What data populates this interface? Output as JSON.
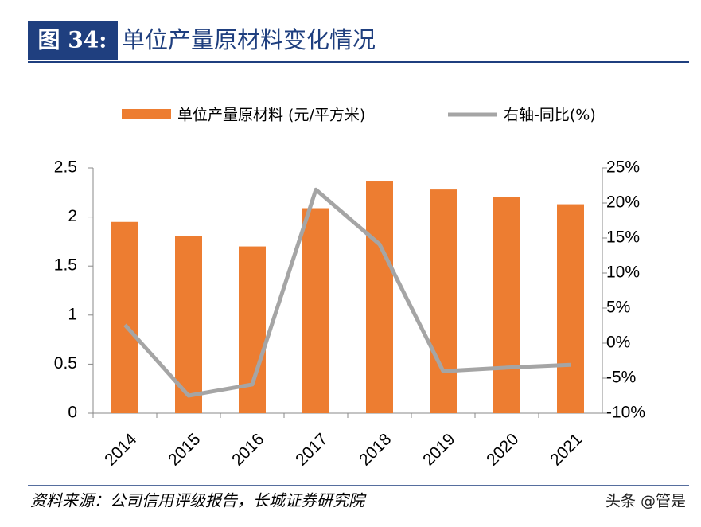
{
  "chart_data": {
    "type": "bar",
    "figure_label": "图 34:",
    "title": "单位产量原材料变化情况",
    "categories": [
      "2014",
      "2015",
      "2016",
      "2017",
      "2018",
      "2019",
      "2020",
      "2021"
    ],
    "series": [
      {
        "name": "单位产量原材料 (元/平方米)",
        "type": "bar",
        "color": "#ed7d31",
        "values": [
          1.95,
          1.81,
          1.7,
          2.09,
          2.37,
          2.28,
          2.2,
          2.13
        ]
      },
      {
        "name": "右轴-同比(%)",
        "type": "line",
        "axis": "y2",
        "color": "#a5a5a5",
        "values": [
          2.6,
          -7.5,
          -5.9,
          21.9,
          14.1,
          -4.0,
          -3.5,
          -3.1
        ]
      }
    ],
    "ylim": [
      0,
      2.5
    ],
    "yticks": [
      0,
      0.5,
      1,
      1.5,
      2,
      2.5
    ],
    "y2lim": [
      -10,
      25
    ],
    "y2ticks": [
      {
        "value": -10,
        "label": "-10%"
      },
      {
        "value": -5,
        "label": "-5%"
      },
      {
        "value": 0,
        "label": "0%"
      },
      {
        "value": 5,
        "label": "5%"
      },
      {
        "value": 10,
        "label": "10%"
      },
      {
        "value": 15,
        "label": "15%"
      },
      {
        "value": 20,
        "label": "20%"
      },
      {
        "value": 25,
        "label": "25%"
      }
    ],
    "legend": "top",
    "source": "资料来源：公司信用评级报告，长城证券研究院"
  },
  "watermark": "头条 @管是"
}
